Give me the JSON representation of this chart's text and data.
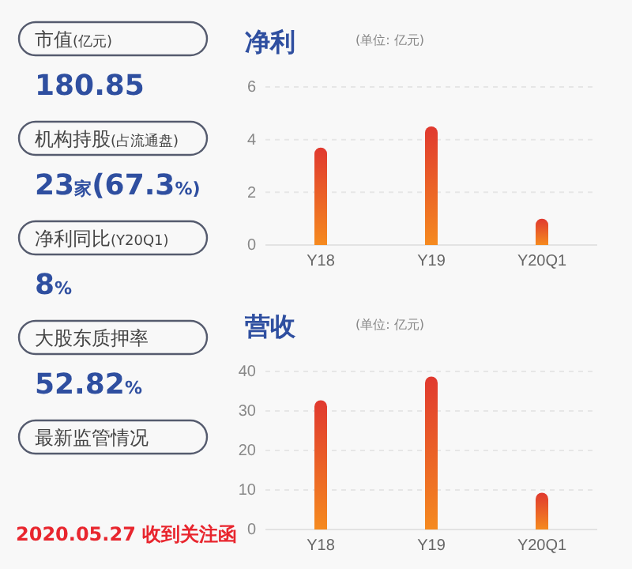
{
  "chart_data": [
    {
      "type": "other",
      "annotations": [
        "市值(亿元)",
        "180.85",
        "机构持股(占流通盘)",
        "23家(67.3%)",
        "净利同比(Y20Q1)",
        "8%",
        "大股东质押率",
        "52.82%",
        "最新监管情况",
        "2020.05.27 收到关注函"
      ]
    },
    {
      "type": "bar",
      "title": "净利",
      "subtitle": "(单位: 亿元)",
      "categories": [
        "Y18",
        "Y19",
        "Y20Q1"
      ],
      "values": [
        3.7,
        4.5,
        1.0
      ],
      "color": "#e0392f",
      "ylim": [
        0,
        6
      ],
      "yticks": [
        0,
        2,
        4,
        6
      ],
      "grid": "y"
    },
    {
      "type": "bar",
      "title": "营收",
      "subtitle": "(单位: 亿元)",
      "categories": [
        "Y18",
        "Y19",
        "Y20Q1"
      ],
      "values": [
        32.7,
        38.7,
        9.3
      ],
      "color": "#e0392f",
      "ylim": [
        0,
        40
      ],
      "yticks": [
        0,
        10,
        20,
        30,
        40
      ],
      "grid": "y"
    }
  ]
}
